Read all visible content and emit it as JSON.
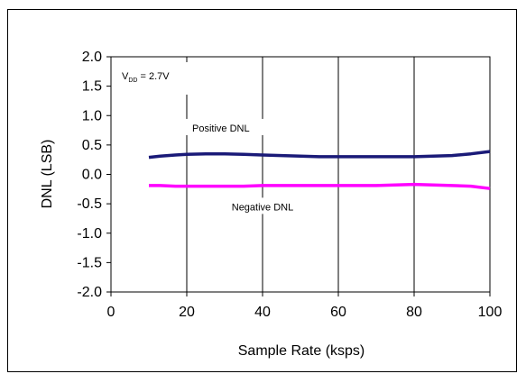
{
  "chart_data": {
    "type": "line",
    "xlabel": "Sample Rate (ksps)",
    "ylabel": "DNL (LSB)",
    "xlim": [
      0,
      100
    ],
    "ylim": [
      -2.0,
      2.0
    ],
    "x_ticks": [
      0,
      20,
      40,
      60,
      80,
      100
    ],
    "y_ticks": [
      2.0,
      1.5,
      1.0,
      0.5,
      0.0,
      -0.5,
      -1.0,
      -1.5,
      -2.0
    ],
    "x_tick_labels": [
      "0",
      "20",
      "40",
      "60",
      "80",
      "100"
    ],
    "y_tick_labels": [
      "2.0",
      "1.5",
      "1.0",
      "0.5",
      "0.0",
      "-0.5",
      "-1.0",
      "-1.5",
      "-2.0"
    ],
    "grid": "vertical",
    "annotation": {
      "main": "V",
      "sub": "DD",
      "rest": " = 2.7V"
    },
    "series": [
      {
        "name": "Positive DNL",
        "color": "#1a1a78",
        "x": [
          10,
          13,
          17,
          20,
          25,
          30,
          35,
          40,
          45,
          50,
          55,
          60,
          65,
          70,
          75,
          80,
          85,
          90,
          95,
          100
        ],
        "y": [
          0.29,
          0.31,
          0.33,
          0.34,
          0.35,
          0.35,
          0.34,
          0.33,
          0.32,
          0.31,
          0.3,
          0.3,
          0.3,
          0.3,
          0.3,
          0.3,
          0.31,
          0.32,
          0.35,
          0.39
        ]
      },
      {
        "name": "Negative DNL",
        "color": "#ff00ff",
        "x": [
          10,
          13,
          17,
          20,
          25,
          30,
          35,
          40,
          45,
          50,
          55,
          60,
          65,
          70,
          75,
          80,
          85,
          90,
          95,
          100
        ],
        "y": [
          -0.19,
          -0.19,
          -0.2,
          -0.2,
          -0.2,
          -0.2,
          -0.2,
          -0.19,
          -0.19,
          -0.19,
          -0.19,
          -0.19,
          -0.19,
          -0.19,
          -0.18,
          -0.17,
          -0.18,
          -0.19,
          -0.2,
          -0.24
        ]
      }
    ]
  }
}
